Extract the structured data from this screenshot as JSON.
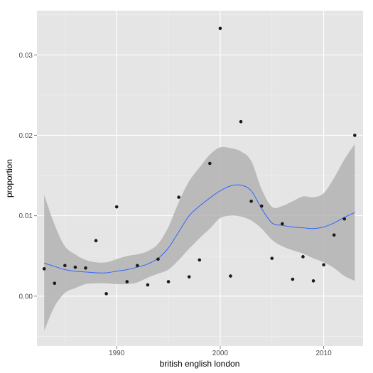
{
  "chart_data": {
    "type": "scatter",
    "xlabel": "british english london",
    "ylabel": "proportion",
    "xlim": [
      1982.3,
      2013.8
    ],
    "ylim": [
      -0.0062,
      0.0355
    ],
    "x_ticks": [
      1990,
      2000,
      2010
    ],
    "x_tick_labels": [
      "1990",
      "2000",
      "2010"
    ],
    "y_ticks": [
      0.0,
      0.01,
      0.02,
      0.03
    ],
    "y_tick_labels": [
      "0.00",
      "0.01",
      "0.02",
      "0.03"
    ],
    "grid": true,
    "legend": "none",
    "colors": {
      "panel": "#e5e5e5",
      "grid_major": "#ffffff",
      "grid_minor": "#f2f2f2",
      "points": "#1a1a1a",
      "smooth_line": "#3366ff",
      "ribbon": "#b3b3b3"
    },
    "points": {
      "x": [
        1983,
        1984,
        1985,
        1986,
        1987,
        1988,
        1989,
        1990,
        1991,
        1992,
        1993,
        1994,
        1995,
        1996,
        1997,
        1998,
        1999,
        2000,
        2001,
        2002,
        2003,
        2004,
        2005,
        2006,
        2007,
        2008,
        2009,
        2010,
        2011,
        2012,
        2013
      ],
      "y": [
        0.0034,
        0.0016,
        0.0038,
        0.0036,
        0.0035,
        0.0069,
        0.0003,
        0.0111,
        0.0018,
        0.0038,
        0.0014,
        0.0046,
        0.0018,
        0.0123,
        0.0024,
        0.0045,
        0.0165,
        0.0333,
        0.0025,
        0.0217,
        0.0118,
        0.0112,
        0.0047,
        0.009,
        0.0021,
        0.0049,
        0.0019,
        0.0039,
        0.0076,
        0.0096,
        0.02
      ]
    },
    "smooth": {
      "x": [
        1983,
        1984,
        1985,
        1986,
        1987,
        1988,
        1989,
        1990,
        1991,
        1992,
        1993,
        1994,
        1995,
        1996,
        1997,
        1998,
        1999,
        2000,
        2001,
        2002,
        2003,
        2004,
        2005,
        2006,
        2007,
        2008,
        2009,
        2010,
        2011,
        2012,
        2013
      ],
      "y": [
        0.0041,
        0.0037,
        0.0033,
        0.0031,
        0.003,
        0.0029,
        0.0029,
        0.0031,
        0.0033,
        0.0036,
        0.004,
        0.0047,
        0.006,
        0.008,
        0.01,
        0.0112,
        0.0122,
        0.0131,
        0.0137,
        0.0138,
        0.0131,
        0.0109,
        0.0091,
        0.0088,
        0.0086,
        0.0085,
        0.0084,
        0.0086,
        0.0091,
        0.0098,
        0.0104
      ],
      "ymin": [
        -0.0043,
        -0.0013,
        0.0004,
        0.001,
        0.0015,
        0.0016,
        0.0016,
        0.0015,
        0.0015,
        0.0017,
        0.0023,
        0.0028,
        0.0033,
        0.0045,
        0.0059,
        0.0072,
        0.0084,
        0.0097,
        0.01,
        0.0099,
        0.0094,
        0.0084,
        0.007,
        0.0062,
        0.0057,
        0.0053,
        0.0047,
        0.0042,
        0.0035,
        0.0025,
        0.0019
      ],
      "ymax": [
        0.0126,
        0.0089,
        0.0062,
        0.0052,
        0.0045,
        0.0042,
        0.0042,
        0.0046,
        0.005,
        0.0052,
        0.0056,
        0.0065,
        0.0086,
        0.0117,
        0.0143,
        0.016,
        0.0176,
        0.0185,
        0.0184,
        0.018,
        0.0168,
        0.0133,
        0.0111,
        0.0112,
        0.0118,
        0.0124,
        0.0123,
        0.0128,
        0.0147,
        0.017,
        0.0189
      ]
    }
  }
}
